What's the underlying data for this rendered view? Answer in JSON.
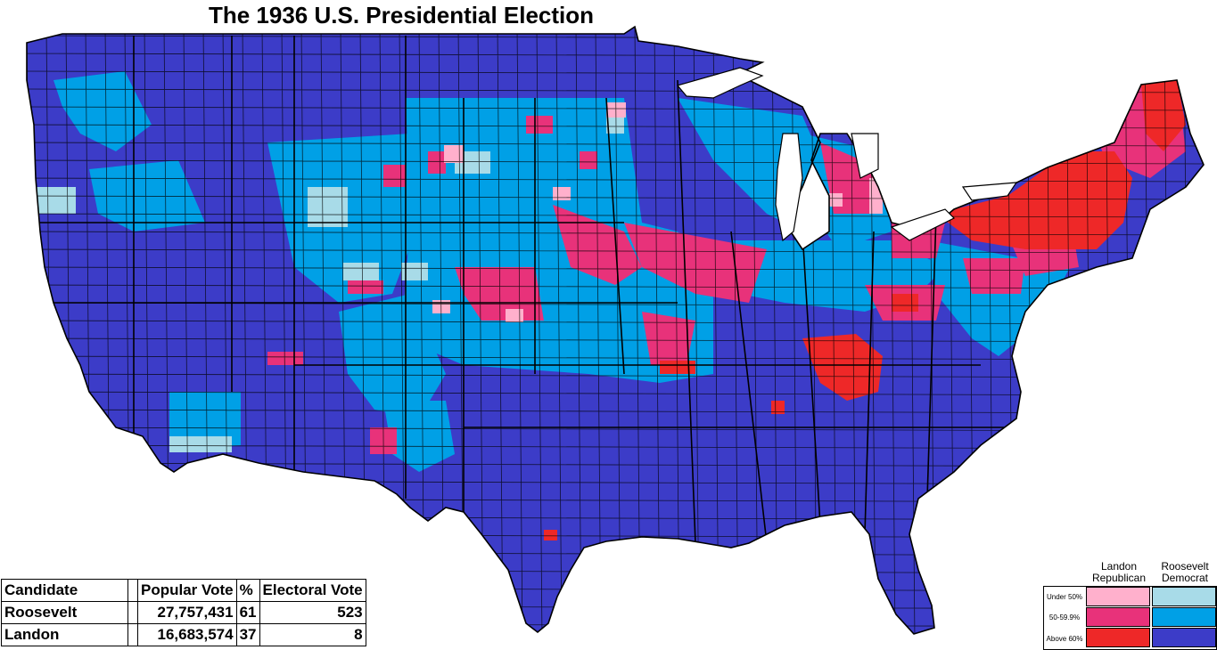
{
  "title": "The 1936 U.S. Presidential Election",
  "colors": {
    "dem_under50": "#a8dbe8",
    "dem_50_60": "#00a0e6",
    "dem_above60": "#3c3cc8",
    "rep_under50": "#ffb0cc",
    "rep_50_60": "#e8327a",
    "rep_above60": "#ee2828",
    "county_line": "#000000"
  },
  "results": {
    "headers": [
      "Candidate",
      "Popular Vote",
      "%",
      "Electoral Vote"
    ],
    "rows": [
      {
        "candidate": "Roosevelt",
        "popular_vote": "27,757,431",
        "percent": "61",
        "electoral_vote": "523"
      },
      {
        "candidate": "Landon",
        "popular_vote": "16,683,574",
        "percent": "37",
        "electoral_vote": "8"
      }
    ]
  },
  "legend": {
    "columns": [
      {
        "line1": "Landon",
        "line2": "Republican"
      },
      {
        "line1": "Roosevelt",
        "line2": "Democrat"
      }
    ],
    "rows": [
      "Under 50%",
      "50-59.9%",
      "Above 60%"
    ]
  }
}
